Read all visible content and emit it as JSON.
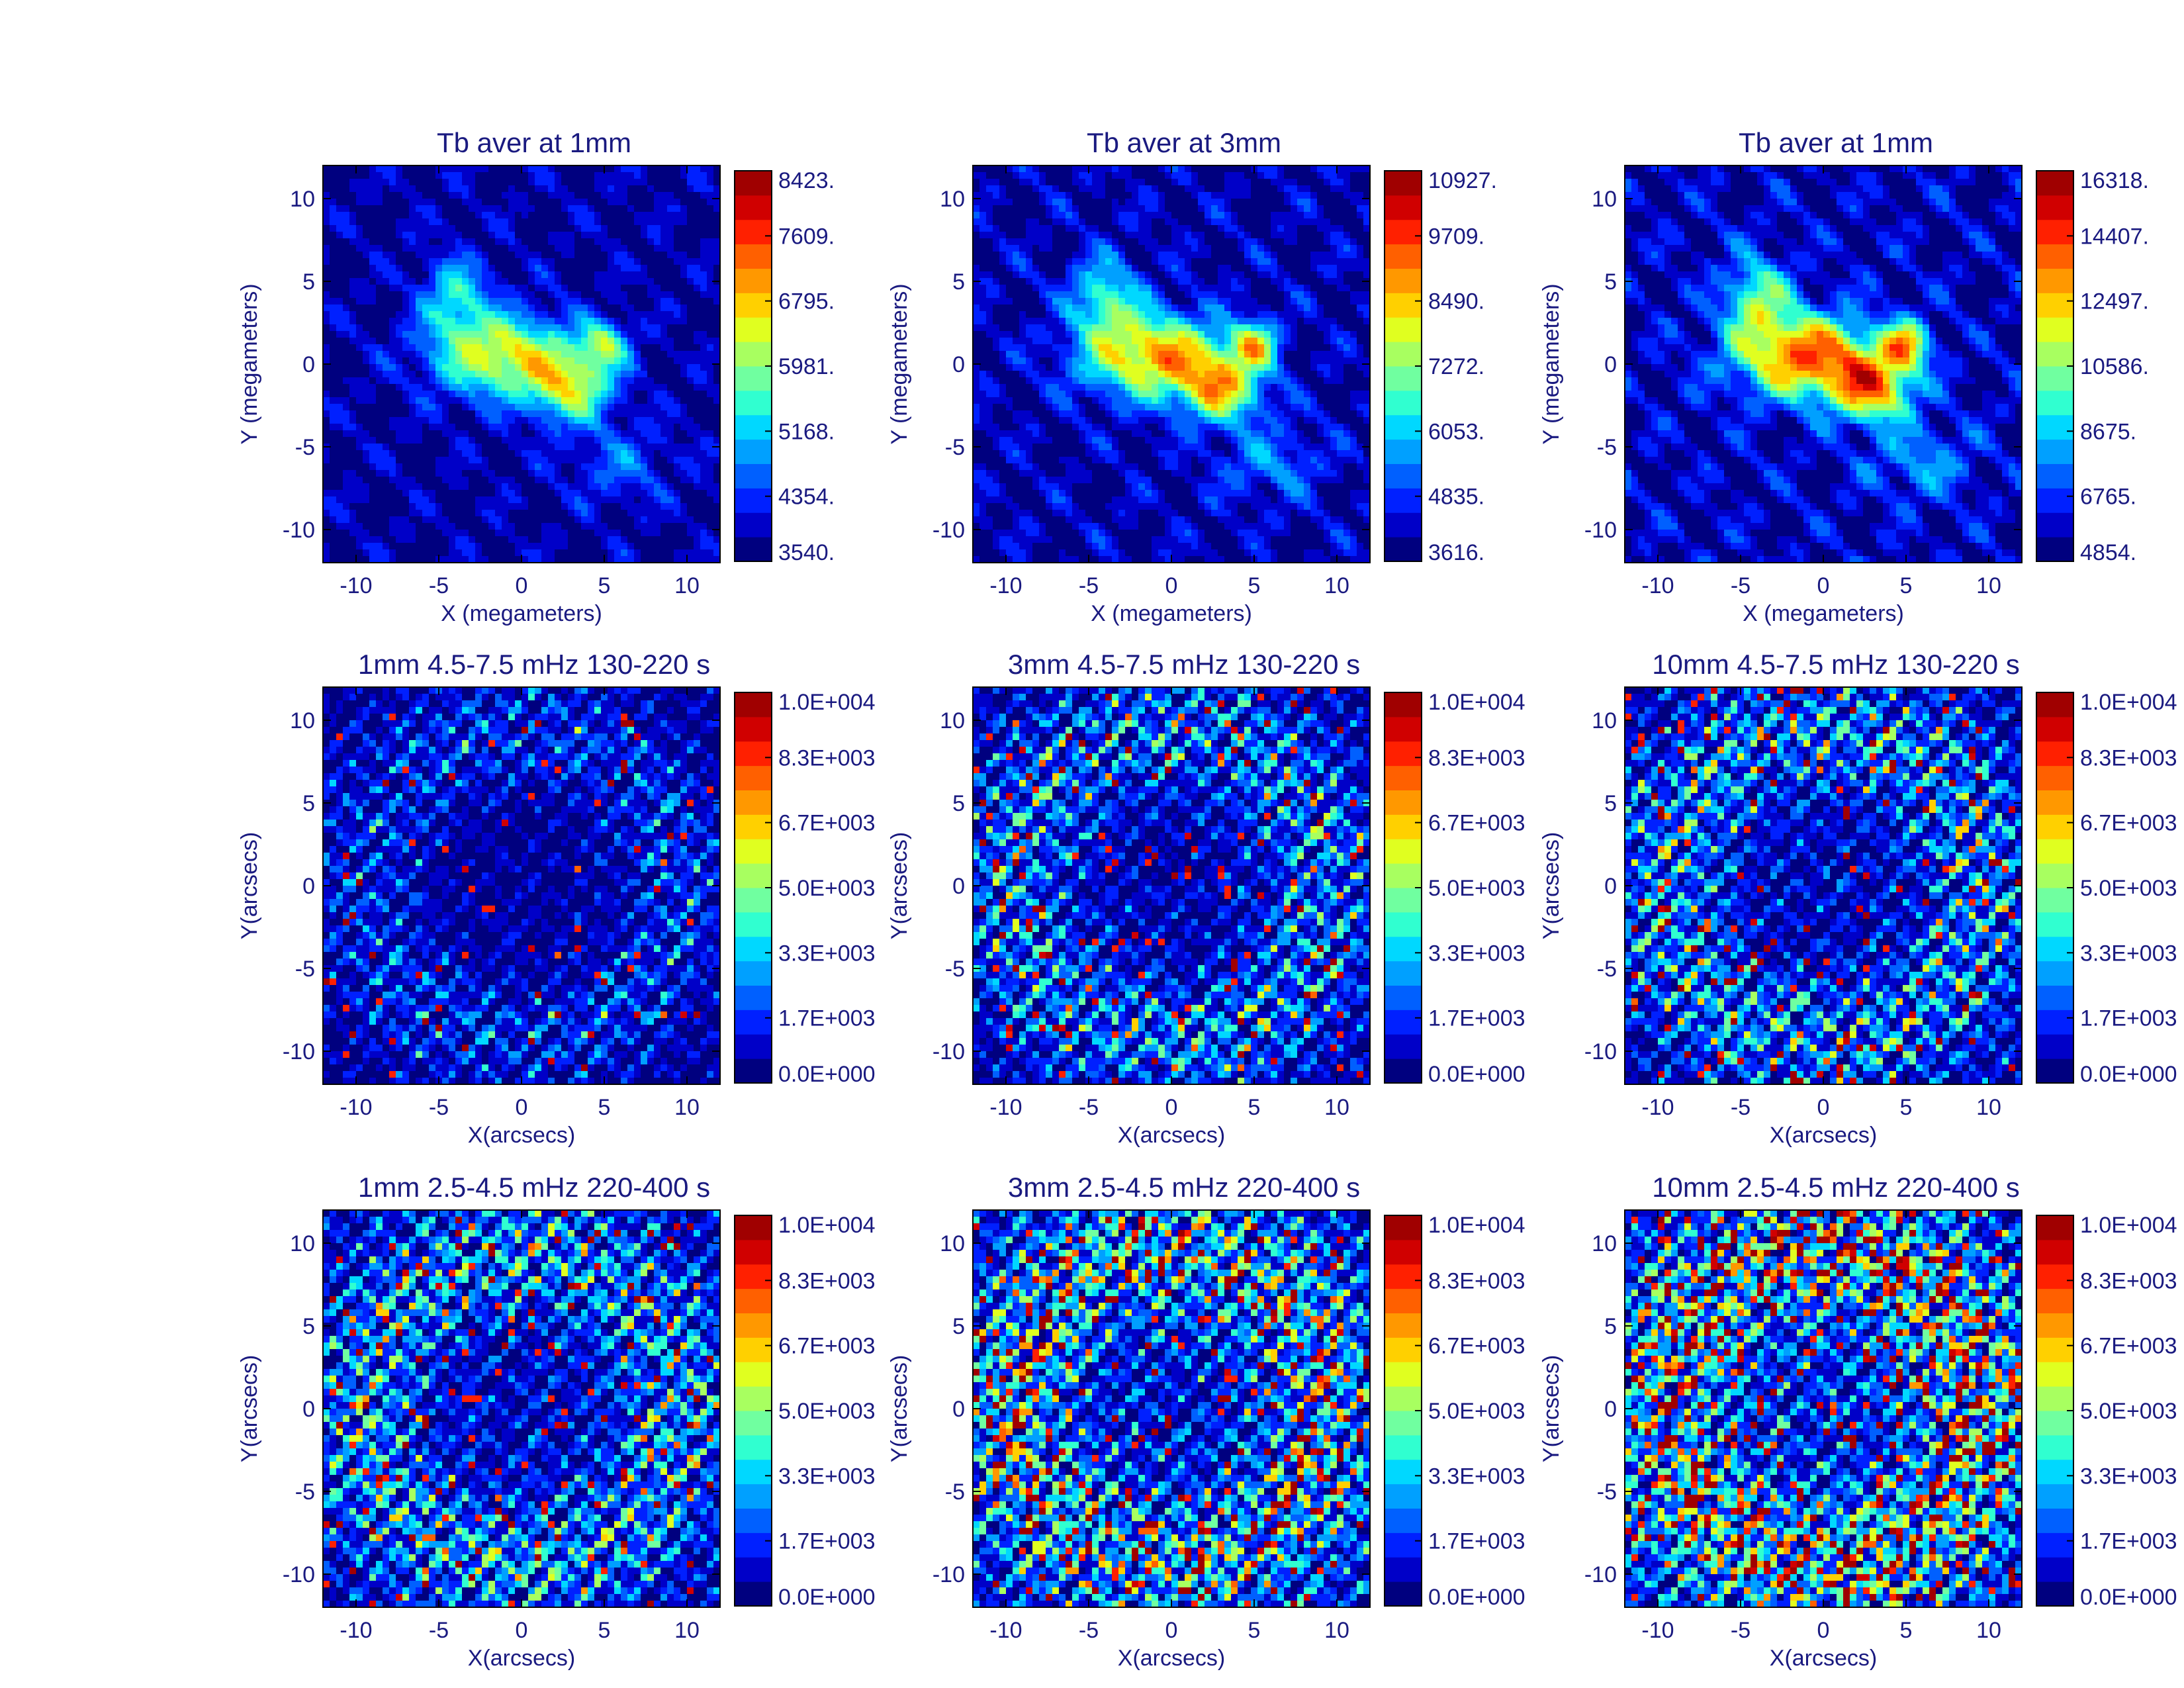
{
  "colors": {
    "text": "#1a1a80",
    "jet": [
      "#00007f",
      "#0000c8",
      "#0020ff",
      "#0060ff",
      "#00a0ff",
      "#00d8ff",
      "#30ffd0",
      "#70ffa0",
      "#a8ff60",
      "#e0ff20",
      "#ffd000",
      "#ff9800",
      "#ff6000",
      "#ff2000",
      "#d00000",
      "#a00000"
    ]
  },
  "chart_data": [
    {
      "type": "heatmap",
      "title": "Tb aver at 1mm",
      "xlabel": "X (megameters)",
      "ylabel": "Y (megameters)",
      "xlim": [
        -12,
        12
      ],
      "ylim": [
        -12,
        12
      ],
      "xticks": [
        "-10",
        "-5",
        "0",
        "5",
        "10"
      ],
      "yticks": [
        "-10",
        "-5",
        "0",
        "5",
        "10"
      ],
      "colorbar_labels": [
        "3540.",
        "4354.",
        "5168.",
        "5981.",
        "6795.",
        "7609.",
        "8423."
      ],
      "colorbar_range": [
        3540,
        8423
      ],
      "field": "average",
      "scale": 1.0
    },
    {
      "type": "heatmap",
      "title": "Tb aver at 3mm",
      "xlabel": "X (megameters)",
      "ylabel": "Y (megameters)",
      "xlim": [
        -12,
        12
      ],
      "ylim": [
        -12,
        12
      ],
      "xticks": [
        "-10",
        "-5",
        "0",
        "5",
        "10"
      ],
      "yticks": [
        "-10",
        "-5",
        "0",
        "5",
        "10"
      ],
      "colorbar_labels": [
        "3616.",
        "4835.",
        "6053.",
        "7272.",
        "8490.",
        "9709.",
        "10927."
      ],
      "colorbar_range": [
        3616,
        10927
      ],
      "field": "average",
      "scale": 1.15
    },
    {
      "type": "heatmap",
      "title": "Tb aver at 1mm",
      "xlabel": "X (megameters)",
      "ylabel": "Y (megameters)",
      "xlim": [
        -12,
        12
      ],
      "ylim": [
        -12,
        12
      ],
      "xticks": [
        "-10",
        "-5",
        "0",
        "5",
        "10"
      ],
      "yticks": [
        "-10",
        "-5",
        "0",
        "5",
        "10"
      ],
      "colorbar_labels": [
        "4854.",
        "6765.",
        "8675.",
        "10586.",
        "12497.",
        "14407.",
        "16318."
      ],
      "colorbar_range": [
        4854,
        16318
      ],
      "field": "average",
      "scale": 1.3
    },
    {
      "type": "heatmap",
      "title": "1mm 4.5-7.5 mHz 130-220 s",
      "xlabel": "X(arcsecs)",
      "ylabel": "Y(arcsecs)",
      "xlim": [
        -12,
        12
      ],
      "ylim": [
        -12,
        12
      ],
      "xticks": [
        "-10",
        "-5",
        "0",
        "5",
        "10"
      ],
      "yticks": [
        "-10",
        "-5",
        "0",
        "5",
        "10"
      ],
      "colorbar_labels": [
        "0.0E+000",
        "1.7E+003",
        "3.3E+003",
        "5.0E+003",
        "6.7E+003",
        "8.3E+003",
        "1.0E+004"
      ],
      "colorbar_range": [
        0,
        10000
      ],
      "field": "power",
      "scale": 0.55
    },
    {
      "type": "heatmap",
      "title": "3mm 4.5-7.5 mHz 130-220 s",
      "xlabel": "X(arcsecs)",
      "ylabel": "Y(arcsecs)",
      "xlim": [
        -12,
        12
      ],
      "ylim": [
        -12,
        12
      ],
      "xticks": [
        "-10",
        "-5",
        "0",
        "5",
        "10"
      ],
      "yticks": [
        "-10",
        "-5",
        "0",
        "5",
        "10"
      ],
      "colorbar_labels": [
        "0.0E+000",
        "1.7E+003",
        "3.3E+003",
        "5.0E+003",
        "6.7E+003",
        "8.3E+003",
        "1.0E+004"
      ],
      "colorbar_range": [
        0,
        10000
      ],
      "field": "power",
      "scale": 0.85
    },
    {
      "type": "heatmap",
      "title": "10mm 4.5-7.5 mHz 130-220 s",
      "xlabel": "X(arcsecs)",
      "ylabel": "Y(arcsecs)",
      "xlim": [
        -12,
        12
      ],
      "ylim": [
        -12,
        12
      ],
      "xticks": [
        "-10",
        "-5",
        "0",
        "5",
        "10"
      ],
      "yticks": [
        "-10",
        "-5",
        "0",
        "5",
        "10"
      ],
      "colorbar_labels": [
        "0.0E+000",
        "1.7E+003",
        "3.3E+003",
        "5.0E+003",
        "6.7E+003",
        "8.3E+003",
        "1.0E+004"
      ],
      "colorbar_range": [
        0,
        10000
      ],
      "field": "power",
      "scale": 0.95
    },
    {
      "type": "heatmap",
      "title": "1mm 2.5-4.5 mHz 220-400 s",
      "xlabel": "X(arcsecs)",
      "ylabel": "Y(arcsecs)",
      "xlim": [
        -12,
        12
      ],
      "ylim": [
        -12,
        12
      ],
      "xticks": [
        "-10",
        "-5",
        "0",
        "5",
        "10"
      ],
      "yticks": [
        "-10",
        "-5",
        "0",
        "5",
        "10"
      ],
      "colorbar_labels": [
        "0.0E+000",
        "1.7E+003",
        "3.3E+003",
        "5.0E+003",
        "6.7E+003",
        "8.3E+003",
        "1.0E+004"
      ],
      "colorbar_range": [
        0,
        10000
      ],
      "field": "power",
      "scale": 1.0
    },
    {
      "type": "heatmap",
      "title": "3mm 2.5-4.5 mHz 220-400 s",
      "xlabel": "X(arcsecs)",
      "ylabel": "Y(arcsecs)",
      "xlim": [
        -12,
        12
      ],
      "ylim": [
        -12,
        12
      ],
      "xticks": [
        "-10",
        "-5",
        "0",
        "5",
        "10"
      ],
      "yticks": [
        "-10",
        "-5",
        "0",
        "5",
        "10"
      ],
      "colorbar_labels": [
        "0.0E+000",
        "1.7E+003",
        "3.3E+003",
        "5.0E+003",
        "6.7E+003",
        "8.3E+003",
        "1.0E+004"
      ],
      "colorbar_range": [
        0,
        10000
      ],
      "field": "power",
      "scale": 1.35
    },
    {
      "type": "heatmap",
      "title": "10mm 2.5-4.5 mHz 220-400 s",
      "xlabel": "X(arcsecs)",
      "ylabel": "Y(arcsecs)",
      "xlim": [
        -12,
        12
      ],
      "ylim": [
        -12,
        12
      ],
      "xticks": [
        "-10",
        "-5",
        "0",
        "5",
        "10"
      ],
      "yticks": [
        "-10",
        "-5",
        "0",
        "5",
        "10"
      ],
      "colorbar_labels": [
        "0.0E+000",
        "1.7E+003",
        "3.3E+003",
        "5.0E+003",
        "6.7E+003",
        "8.3E+003",
        "1.0E+004"
      ],
      "colorbar_range": [
        0,
        10000
      ],
      "field": "power",
      "scale": 1.6
    }
  ]
}
